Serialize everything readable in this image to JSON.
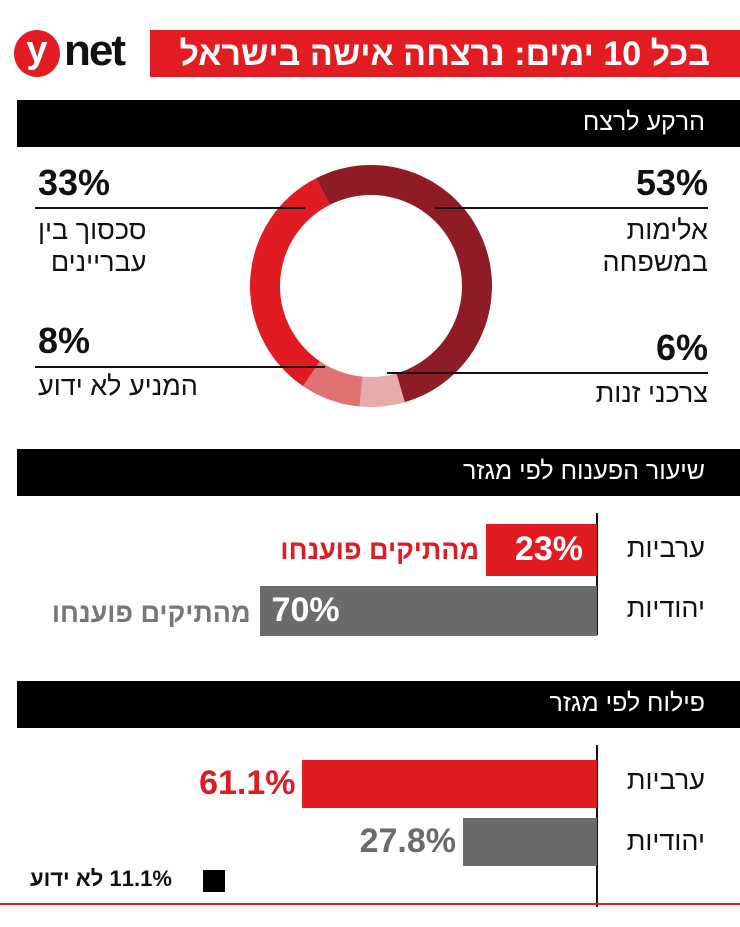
{
  "header": {
    "logo": "ynet",
    "title": "בכל 10 ימים: נרצחה אישה בישראל"
  },
  "colors": {
    "brand_red": "#e31b23",
    "dark_red": "#8f1b26",
    "medium_pink": "#e07272",
    "light_pink": "#e8abab",
    "gray": "#6b6b6b"
  },
  "chart_data": [
    {
      "type": "pie",
      "variant": "donut",
      "title": "הרקע לרצח",
      "slices": [
        {
          "label": "אלימות במשפחה",
          "label_lines": [
            "אלימות",
            "במשפחה"
          ],
          "value": 53,
          "display": "53%",
          "color": "#8f1b26"
        },
        {
          "label": "צרכני זנות",
          "label_lines": [
            "צרכני זנות"
          ],
          "value": 6,
          "display": "6%",
          "color": "#e8abab"
        },
        {
          "label": "המניע לא ידוע",
          "label_lines": [
            "המניע לא ידוע"
          ],
          "value": 8,
          "display": "8%",
          "color": "#e07272"
        },
        {
          "label": "סכסוך בין עבריינים",
          "label_lines": [
            "סכסוך בין",
            "עבריינים"
          ],
          "value": 33,
          "display": "33%",
          "color": "#e01b22"
        }
      ]
    },
    {
      "type": "bar",
      "orientation": "horizontal",
      "title": "שיעור הפענוח לפי מגזר",
      "categories": [
        "ערביות",
        "יהודיות"
      ],
      "values": [
        23,
        70
      ],
      "display": [
        "23%",
        "70%"
      ],
      "notes": [
        "מהתיקים פוענחו",
        "מהתיקים פוענחו"
      ],
      "colors": [
        "#e01b22",
        "#6b6b6b"
      ]
    },
    {
      "type": "bar",
      "orientation": "horizontal",
      "title": "פילוח לפי מגזר",
      "categories": [
        "ערביות",
        "יהודיות"
      ],
      "values": [
        61.1,
        27.8
      ],
      "display": [
        "61.1%",
        "27.8%"
      ],
      "colors": [
        "#e01b22",
        "#6b6b6b"
      ],
      "legend": {
        "label": "11.1% לא ידוע",
        "value": 11.1,
        "color": "#000000"
      }
    }
  ]
}
